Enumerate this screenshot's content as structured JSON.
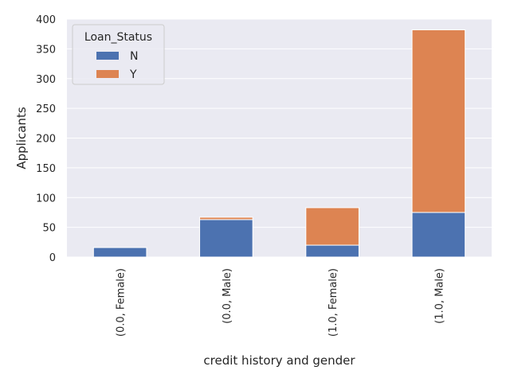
{
  "chart_data": {
    "type": "bar",
    "stacked": true,
    "categories": [
      "(0.0, Female)",
      "(0.0, Male)",
      "(1.0, Female)",
      "(1.0, Male)"
    ],
    "series": [
      {
        "name": "N",
        "values": [
          16,
          63,
          20,
          75
        ],
        "color": "#4C72B0"
      },
      {
        "name": "Y",
        "values": [
          0,
          4,
          63,
          307
        ],
        "color": "#DD8452"
      }
    ],
    "xlabel": "credit history and gender",
    "ylabel": "Applicants",
    "ylim": [
      0,
      400
    ],
    "yticks": [
      0,
      50,
      100,
      150,
      200,
      250,
      300,
      350,
      400
    ],
    "legend": {
      "title": "Loan_Status",
      "placement": "top-left"
    },
    "grid": true,
    "background": "#EAEAF2",
    "grid_color": "#FFFFFF"
  }
}
